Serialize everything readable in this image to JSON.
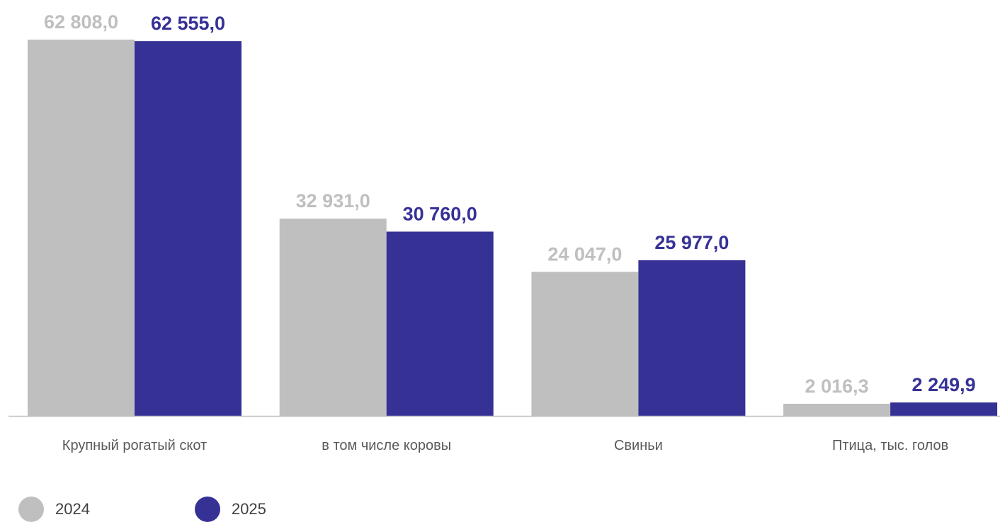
{
  "colors": {
    "s2024": "#bfbfbf",
    "s2025": "#363195",
    "axis": "#bfbfbf"
  },
  "legend": [
    {
      "label": "2024"
    },
    {
      "label": "2025"
    }
  ],
  "chart_data": {
    "type": "bar",
    "title": "",
    "xlabel": "",
    "ylabel": "",
    "categories": [
      "Крупный рогатый скот",
      "в том числе коровы",
      "Свиньи",
      "Птица, тыс. голов"
    ],
    "series": [
      {
        "name": "2024",
        "values": [
          62808.0,
          32931.0,
          24047.0,
          2016.3
        ],
        "labels": [
          "62 808,0",
          "32 931,0",
          "24 047,0",
          "2 016,3"
        ]
      },
      {
        "name": "2025",
        "values": [
          62555.0,
          30760.0,
          25977.0,
          2249.9
        ],
        "labels": [
          "62 555,0",
          "30 760,0",
          "25 977,0",
          "2 249,9"
        ]
      }
    ],
    "ylim": [
      0,
      62808.0
    ],
    "grid": false,
    "legend_position": "bottom-left"
  }
}
